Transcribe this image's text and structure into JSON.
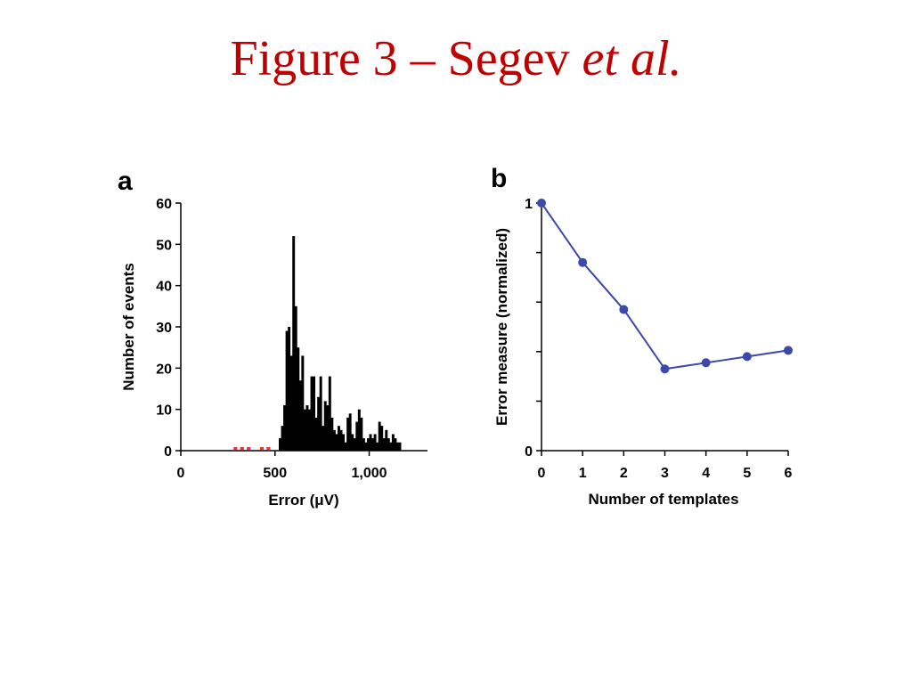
{
  "slide": {
    "title_main": "Figure 3 – Segev ",
    "title_italic": "et al."
  },
  "chart_data": [
    {
      "panel": "a",
      "type": "bar",
      "xlabel": "Error (μV)",
      "ylabel": "Number of events",
      "xlim": [
        0,
        1300
      ],
      "ylim": [
        0,
        60
      ],
      "x_ticks": [
        0,
        500,
        1000
      ],
      "x_tick_labels": [
        "0",
        "500",
        "1,000"
      ],
      "y_ticks": [
        0,
        10,
        20,
        30,
        40,
        50,
        60
      ],
      "y_tick_labels": [
        "0",
        "10",
        "20",
        "30",
        "40",
        "50",
        "60"
      ],
      "bin_width": 12,
      "bins": [
        {
          "x": 520,
          "v": 3
        },
        {
          "x": 532,
          "v": 6
        },
        {
          "x": 544,
          "v": 11
        },
        {
          "x": 556,
          "v": 29
        },
        {
          "x": 568,
          "v": 30
        },
        {
          "x": 580,
          "v": 23
        },
        {
          "x": 592,
          "v": 52
        },
        {
          "x": 604,
          "v": 35
        },
        {
          "x": 616,
          "v": 25
        },
        {
          "x": 628,
          "v": 17
        },
        {
          "x": 640,
          "v": 23
        },
        {
          "x": 652,
          "v": 10
        },
        {
          "x": 664,
          "v": 11
        },
        {
          "x": 676,
          "v": 10
        },
        {
          "x": 688,
          "v": 18
        },
        {
          "x": 700,
          "v": 18
        },
        {
          "x": 712,
          "v": 8
        },
        {
          "x": 724,
          "v": 13
        },
        {
          "x": 736,
          "v": 18
        },
        {
          "x": 748,
          "v": 6
        },
        {
          "x": 760,
          "v": 12
        },
        {
          "x": 772,
          "v": 11
        },
        {
          "x": 784,
          "v": 18
        },
        {
          "x": 796,
          "v": 8
        },
        {
          "x": 808,
          "v": 5
        },
        {
          "x": 820,
          "v": 4
        },
        {
          "x": 832,
          "v": 6
        },
        {
          "x": 844,
          "v": 5
        },
        {
          "x": 856,
          "v": 4
        },
        {
          "x": 868,
          "v": 2
        },
        {
          "x": 880,
          "v": 8
        },
        {
          "x": 892,
          "v": 9
        },
        {
          "x": 904,
          "v": 4
        },
        {
          "x": 916,
          "v": 3
        },
        {
          "x": 928,
          "v": 7
        },
        {
          "x": 940,
          "v": 10
        },
        {
          "x": 952,
          "v": 8
        },
        {
          "x": 964,
          "v": 3
        },
        {
          "x": 976,
          "v": 2
        },
        {
          "x": 988,
          "v": 3
        },
        {
          "x": 1000,
          "v": 4
        },
        {
          "x": 1012,
          "v": 3
        },
        {
          "x": 1024,
          "v": 4
        },
        {
          "x": 1036,
          "v": 2
        },
        {
          "x": 1048,
          "v": 7
        },
        {
          "x": 1060,
          "v": 6
        },
        {
          "x": 1072,
          "v": 3
        },
        {
          "x": 1084,
          "v": 5
        },
        {
          "x": 1096,
          "v": 3
        },
        {
          "x": 1108,
          "v": 2
        },
        {
          "x": 1120,
          "v": 4
        },
        {
          "x": 1132,
          "v": 3
        },
        {
          "x": 1144,
          "v": 2
        },
        {
          "x": 1156,
          "v": 2
        }
      ],
      "marker_color": "#e23b3b",
      "markers": [
        {
          "x_start": 280,
          "x_end": 300
        },
        {
          "x_start": 315,
          "x_end": 335
        },
        {
          "x_start": 350,
          "x_end": 370
        },
        {
          "x_start": 420,
          "x_end": 440
        },
        {
          "x_start": 455,
          "x_end": 475
        }
      ]
    },
    {
      "panel": "b",
      "type": "line",
      "xlabel": "Number of templates",
      "ylabel": "Error measure (normalized)",
      "xlim": [
        0,
        6
      ],
      "ylim": [
        0,
        1
      ],
      "x_ticks": [
        0,
        1,
        2,
        3,
        4,
        5,
        6
      ],
      "x_tick_labels": [
        "0",
        "1",
        "2",
        "3",
        "4",
        "5",
        "6"
      ],
      "y_ticks": [
        0,
        0.2,
        0.4,
        0.6,
        0.8,
        1
      ],
      "y_tick_labels": [
        "0",
        "",
        "",
        "",
        "",
        "1"
      ],
      "color": "#3b49a8",
      "x": [
        0,
        1,
        2,
        3,
        4,
        5,
        6
      ],
      "y": [
        1.0,
        0.76,
        0.57,
        0.33,
        0.355,
        0.38,
        0.405
      ]
    }
  ]
}
